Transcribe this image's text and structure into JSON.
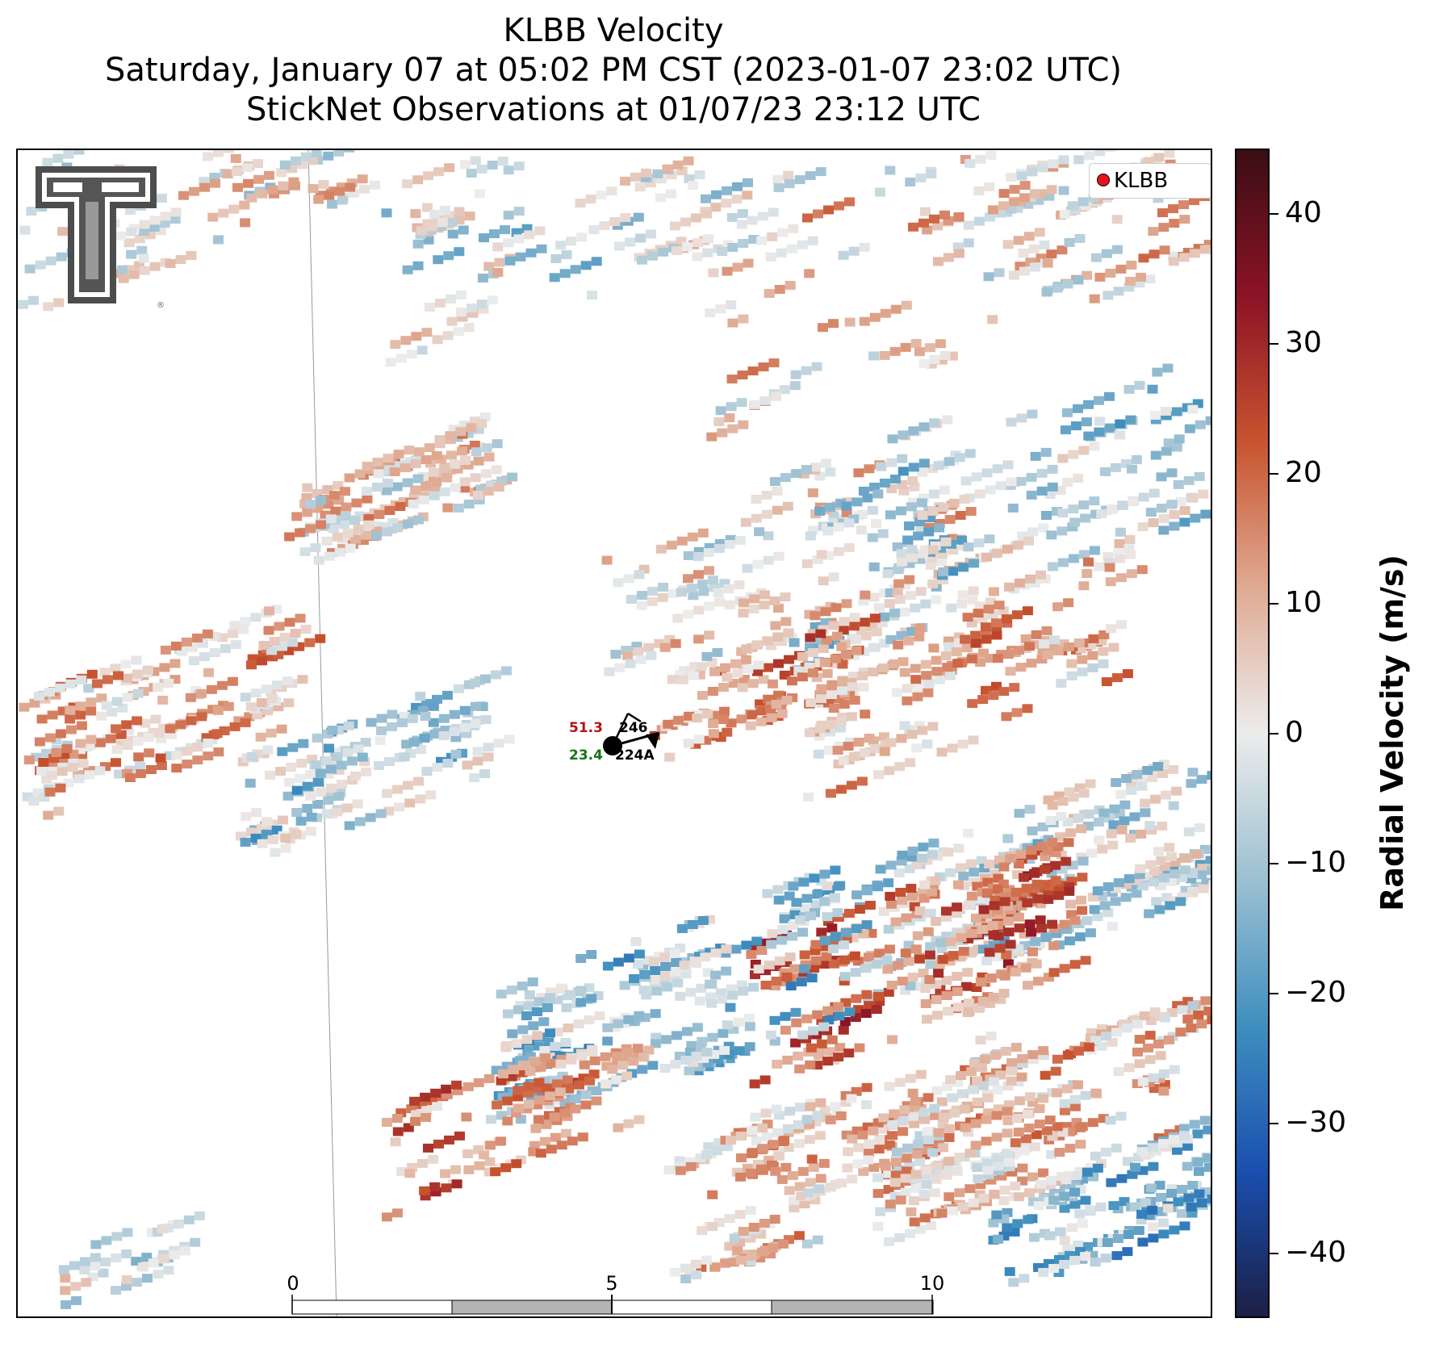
{
  "title": {
    "line1": "KLBB Velocity",
    "line2": "Saturday, January 07 at 05:02 PM CST (2023-01-07 23:02 UTC)",
    "line3": "StickNet Observations at 01/07/23 23:12 UTC"
  },
  "legend": {
    "label": "KLBB",
    "marker_color": "#e8121c"
  },
  "colorbar": {
    "title": "Radial Velocity (m/s)",
    "ticks": [
      "40",
      "30",
      "20",
      "10",
      "0",
      "−10",
      "−20",
      "−30",
      "−40"
    ],
    "range": [
      -45,
      45
    ],
    "colors": [
      "#1b1f45",
      "#1a4fb0",
      "#3f8fbe",
      "#9cc0d2",
      "#ececec",
      "#e0aa92",
      "#c8532f",
      "#8c1326",
      "#3a0e14"
    ]
  },
  "station": {
    "temperature": "51.3",
    "dewpoint": "23.4",
    "pressure_code": "246",
    "station_id": "224A",
    "temperature_color": "#b31313",
    "dewpoint_color": "#147514"
  },
  "scale_bar": {
    "labels": [
      "0",
      "5",
      "10"
    ],
    "unit": "km"
  },
  "logo": {
    "name": "Texas Tech double-T logo"
  }
}
